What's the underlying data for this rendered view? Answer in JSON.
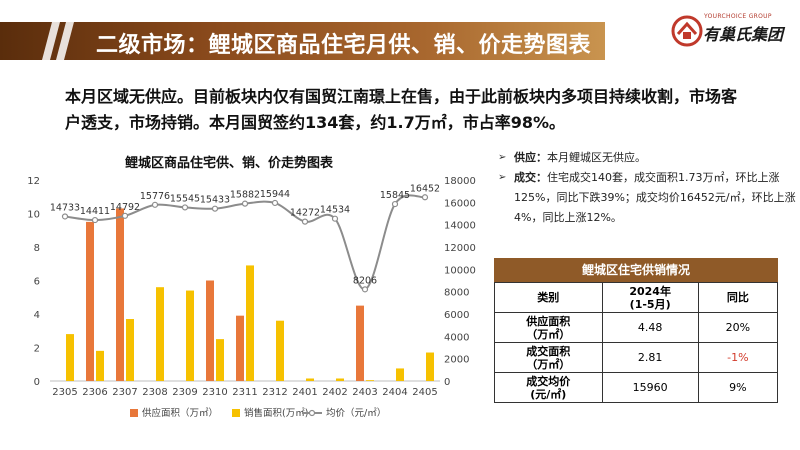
{
  "header": {
    "title": "二级市场：鲤城区商品住宅月供、销、价走势图表"
  },
  "logo": {
    "tagline": "YOURCHOICE GROUP",
    "name": "有巢氏集团"
  },
  "summary": {
    "line1": "本月区域无供应。目前板块内仅有国贸江南璟上在售，由于此前板块内多项目持续收割，市场客",
    "line2": "户透支，市场持销。本月国贸签约134套，约1.7万㎡，市占率98%。"
  },
  "chart_title": "鲤城区商品住宅供、销、价走势图表",
  "chart_data": {
    "type": "bar",
    "title": "鲤城区商品住宅供、销、价走势图表",
    "categories": [
      "2305",
      "2306",
      "2307",
      "2308",
      "2309",
      "2310",
      "2311",
      "2312",
      "2401",
      "2402",
      "2403",
      "2404",
      "2405"
    ],
    "series": [
      {
        "name": "供应面积（万㎡）",
        "type": "bar",
        "axis": "left",
        "color": "#e8773a",
        "values": [
          0,
          9.5,
          10.3,
          0,
          0,
          6.0,
          3.9,
          0,
          0,
          0,
          4.5,
          0,
          0
        ]
      },
      {
        "name": "销售面积(万㎡)",
        "type": "bar",
        "axis": "left",
        "color": "#f6c100",
        "values": [
          2.8,
          1.8,
          3.7,
          5.6,
          5.4,
          2.5,
          6.9,
          3.6,
          0.15,
          0.15,
          0.05,
          0.75,
          1.7
        ]
      },
      {
        "name": "均价（元/㎡）",
        "type": "line",
        "axis": "right",
        "color": "#8c8c8c",
        "values": [
          14733,
          14411,
          14792,
          15776,
          15545,
          15433,
          15882,
          15944,
          14272,
          14534,
          8206,
          15845,
          16452
        ],
        "labels": [
          "14733",
          "14411",
          "14792",
          "15776",
          "15545",
          "15433",
          "15882",
          "15944",
          "14272",
          "14534",
          "8206",
          "15845",
          "16452"
        ]
      }
    ],
    "y_left": {
      "min": 0,
      "max": 12,
      "ticks": [
        "0",
        "2",
        "4",
        "6",
        "8",
        "10",
        "12"
      ]
    },
    "y_right": {
      "min": 0,
      "max": 18000,
      "ticks": [
        "0",
        "2000",
        "4000",
        "6000",
        "8000",
        "10000",
        "12000",
        "14000",
        "16000",
        "18000"
      ]
    },
    "grid": false,
    "legend_position": "bottom"
  },
  "bullets": [
    {
      "marker": "➢",
      "label": "供应：",
      "text": "本月鲤城区无供应。"
    },
    {
      "marker": "➢",
      "label": "成交：",
      "text": "住宅成交140套，成交面积1.73万㎡，环比上涨125%，同比下跌39%；成交均价16452元/㎡，环比上涨4%，同比上涨12%。"
    }
  ],
  "table": {
    "title": "鲤城区住宅供销情况",
    "headers": [
      "类别",
      "2024年\n(1-5月)",
      "同比"
    ],
    "rows": [
      {
        "label": "供应面积\n（万㎡）",
        "value": "4.48",
        "yoy": "20%",
        "negative": false
      },
      {
        "label": "成交面积\n（万㎡）",
        "value": "2.81",
        "yoy": "-1%",
        "negative": true
      },
      {
        "label": "成交均价\n(元/㎡)",
        "value": "15960",
        "yoy": "9%",
        "negative": false
      }
    ]
  },
  "colors": {
    "header_dark": "#5a2d0c",
    "header_light": "#c9944f",
    "table_title": "#8f5a28",
    "negative": "#d23b2b"
  }
}
